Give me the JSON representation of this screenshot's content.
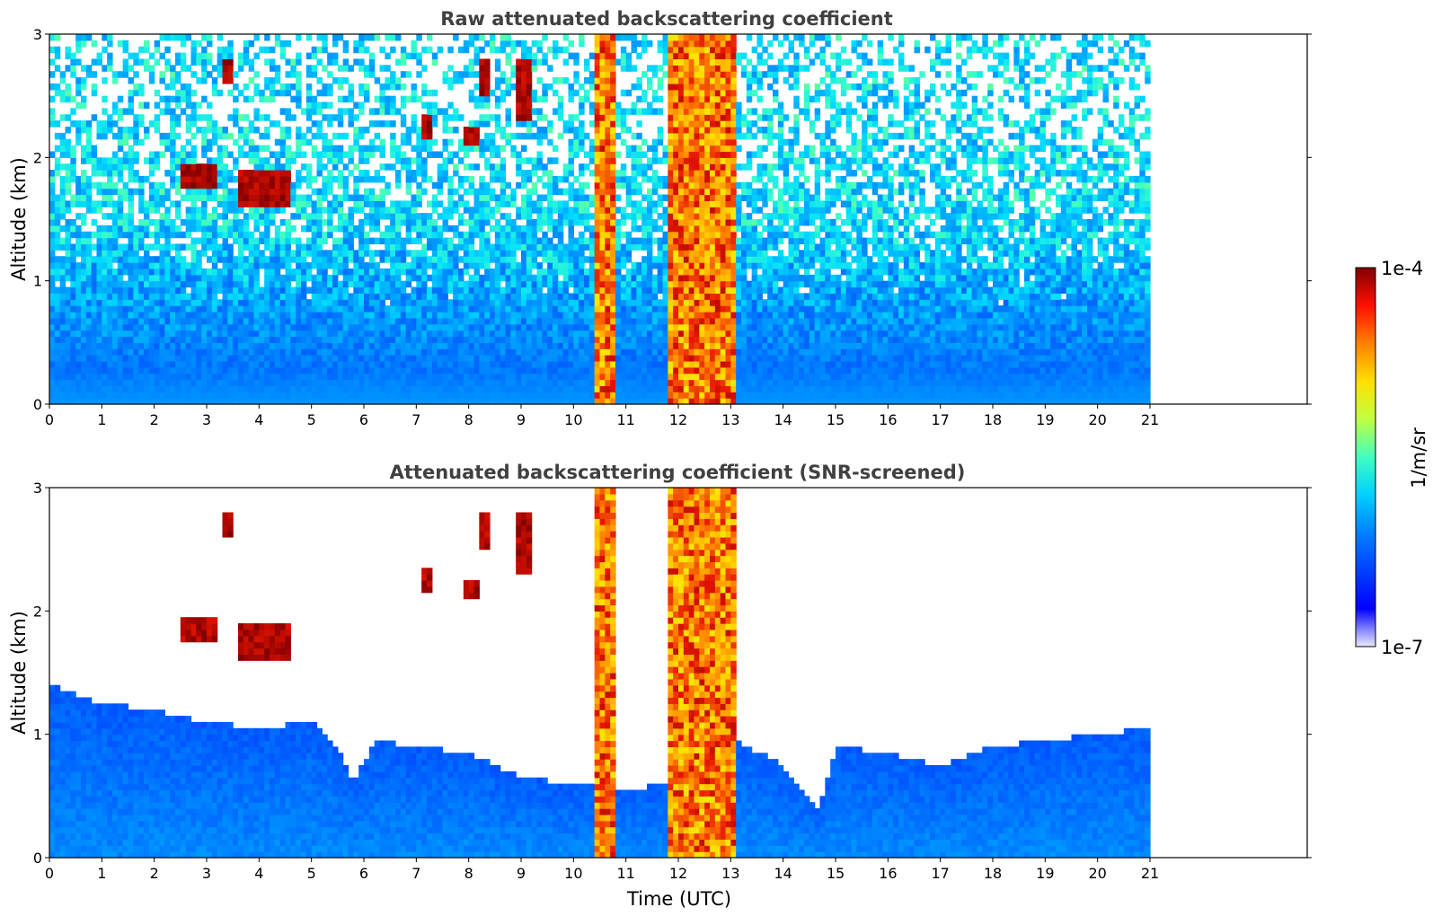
{
  "chart_data": [
    {
      "type": "heatmap",
      "title": "Raw attenuated backscattering coefficient",
      "xlabel": "",
      "ylabel": "Altitude (km)",
      "xlim": [
        0,
        24
      ],
      "ylim": [
        0,
        3
      ],
      "x_ticks": [
        "0",
        "1",
        "2",
        "3",
        "4",
        "5",
        "6",
        "7",
        "8",
        "9",
        "10",
        "11",
        "12",
        "13",
        "14",
        "15",
        "16",
        "17",
        "18",
        "19",
        "20",
        "21"
      ],
      "y_ticks": [
        "0",
        "1",
        "2",
        "3"
      ],
      "data_extent_hours": [
        0,
        21
      ],
      "cloud_layers": [
        {
          "start": 2.5,
          "end": 3.2,
          "alt_low": 1.75,
          "alt_high": 1.95
        },
        {
          "start": 3.6,
          "end": 4.6,
          "alt_low": 1.6,
          "alt_high": 1.9
        },
        {
          "start": 3.3,
          "end": 3.45,
          "alt_low": 2.6,
          "alt_high": 2.8
        },
        {
          "start": 7.1,
          "end": 7.35,
          "alt_low": 2.15,
          "alt_high": 2.35
        },
        {
          "start": 7.95,
          "end": 8.2,
          "alt_low": 2.1,
          "alt_high": 2.25
        },
        {
          "start": 8.2,
          "end": 8.35,
          "alt_low": 2.5,
          "alt_high": 2.8
        },
        {
          "start": 8.95,
          "end": 9.15,
          "alt_low": 2.3,
          "alt_high": 2.8
        },
        {
          "start": 10.4,
          "end": 10.75,
          "alt_low": 0.0,
          "alt_high": 3.0
        },
        {
          "start": 11.8,
          "end": 13.05,
          "alt_low": 0.0,
          "alt_high": 3.0
        }
      ]
    },
    {
      "type": "heatmap",
      "title": "Attenuated backscattering coefficient (SNR-screened)",
      "xlabel": "Time (UTC)",
      "ylabel": "Altitude (km)",
      "xlim": [
        0,
        24
      ],
      "ylim": [
        0,
        3
      ],
      "x_ticks": [
        "0",
        "1",
        "2",
        "3",
        "4",
        "5",
        "6",
        "7",
        "8",
        "9",
        "10",
        "11",
        "12",
        "13",
        "14",
        "15",
        "16",
        "17",
        "18",
        "19",
        "20",
        "21"
      ],
      "y_ticks": [
        "0",
        "1",
        "2",
        "3"
      ],
      "data_extent_hours": [
        0,
        21
      ],
      "boundary_layer_top_km": [
        {
          "t": 0,
          "h": 1.4
        },
        {
          "t": 1,
          "h": 1.25
        },
        {
          "t": 2,
          "h": 1.2
        },
        {
          "t": 3,
          "h": 1.1
        },
        {
          "t": 4,
          "h": 1.05
        },
        {
          "t": 5,
          "h": 1.1
        },
        {
          "t": 5.5,
          "h": 0.9
        },
        {
          "t": 5.8,
          "h": 0.6
        },
        {
          "t": 6.2,
          "h": 0.95
        },
        {
          "t": 7,
          "h": 0.9
        },
        {
          "t": 8,
          "h": 0.85
        },
        {
          "t": 9,
          "h": 0.65
        },
        {
          "t": 10,
          "h": 0.6
        },
        {
          "t": 11,
          "h": 0.55
        },
        {
          "t": 11.8,
          "h": 0.6
        },
        {
          "t": 13.1,
          "h": 0.95
        },
        {
          "t": 14,
          "h": 0.75
        },
        {
          "t": 14.7,
          "h": 0.4
        },
        {
          "t": 15,
          "h": 0.9
        },
        {
          "t": 16,
          "h": 0.85
        },
        {
          "t": 17,
          "h": 0.75
        },
        {
          "t": 18,
          "h": 0.9
        },
        {
          "t": 19,
          "h": 0.95
        },
        {
          "t": 20,
          "h": 1.0
        },
        {
          "t": 21,
          "h": 1.05
        }
      ]
    }
  ],
  "colorbar": {
    "label": "1/m/sr",
    "max_label": "1e-4",
    "min_label": "1e-7",
    "scale": "log",
    "range": [
      1e-07,
      0.0001
    ],
    "colormap": "jet"
  }
}
